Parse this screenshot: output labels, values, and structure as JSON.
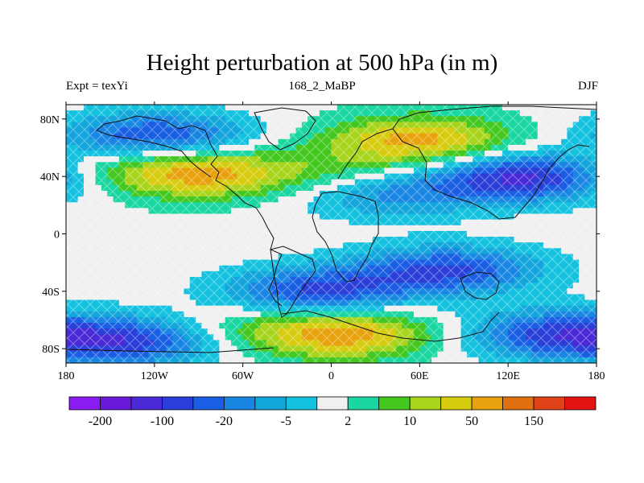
{
  "chart_data": {
    "type": "heatmap",
    "title": "Height perturbation at 500 hPa (in m)",
    "left_label": "Expt = texYi",
    "center_label": "168_2_MaBP",
    "right_label": "DJF",
    "xlabel": "",
    "ylabel": "",
    "xlim": [
      -180,
      180
    ],
    "ylim": [
      -90,
      90
    ],
    "x_ticks": [
      {
        "value": -180,
        "label": "180"
      },
      {
        "value": -120,
        "label": "120W"
      },
      {
        "value": -60,
        "label": "60W"
      },
      {
        "value": 0,
        "label": "0"
      },
      {
        "value": 60,
        "label": "60E"
      },
      {
        "value": 120,
        "label": "120E"
      },
      {
        "value": 180,
        "label": "180"
      }
    ],
    "y_ticks": [
      {
        "value": 80,
        "label": "80N"
      },
      {
        "value": 40,
        "label": "40N"
      },
      {
        "value": 0,
        "label": "0"
      },
      {
        "value": -40,
        "label": "40S"
      },
      {
        "value": -80,
        "label": "80S"
      }
    ],
    "colorbar": {
      "colors": [
        "#8a1cf2",
        "#6a18dc",
        "#4a2ad6",
        "#2a3ed8",
        "#1a5ee4",
        "#1a86e4",
        "#12a6dc",
        "#14c2e0",
        "#f0f0f0",
        "#1ad6a0",
        "#44c820",
        "#a8d41c",
        "#d8cc10",
        "#e8a20e",
        "#e07010",
        "#e0421a",
        "#e41414"
      ],
      "labels": [
        {
          "boundary": 1,
          "text": "-200"
        },
        {
          "boundary": 3,
          "text": "-100"
        },
        {
          "boundary": 5,
          "text": "-20"
        },
        {
          "boundary": 7,
          "text": "-5"
        },
        {
          "boundary": 9,
          "text": "2"
        },
        {
          "boundary": 11,
          "text": "10"
        },
        {
          "boundary": 13,
          "text": "50"
        },
        {
          "boundary": 15,
          "text": "150"
        }
      ]
    },
    "features": [
      {
        "lon": -120,
        "lat": 68,
        "level": -3
      },
      {
        "lon": -165,
        "lat": 45,
        "level": 1
      },
      {
        "lon": -90,
        "lat": 42,
        "level": 3
      },
      {
        "lon": 5,
        "lat": 42,
        "level": 1
      },
      {
        "lon": 60,
        "lat": 65,
        "level": 3
      },
      {
        "lon": 135,
        "lat": 40,
        "level": -4
      },
      {
        "lon": 40,
        "lat": 28,
        "level": -2
      },
      {
        "lon": 80,
        "lat": -25,
        "level": -3
      },
      {
        "lon": -10,
        "lat": -40,
        "level": -3
      },
      {
        "lon": -130,
        "lat": -75,
        "level": -3
      },
      {
        "lon": 150,
        "lat": -70,
        "level": -3
      },
      {
        "lon": 10,
        "lat": -70,
        "level": 3
      },
      {
        "lon": -60,
        "lat": -68,
        "level": 1
      }
    ]
  }
}
